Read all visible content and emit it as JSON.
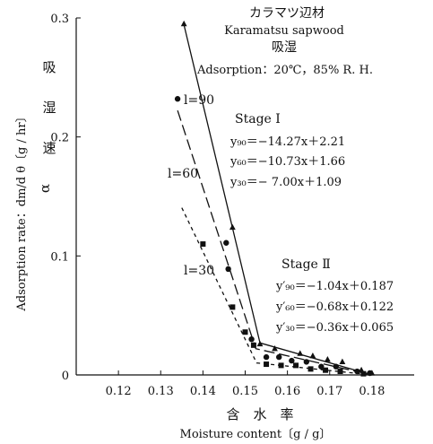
{
  "chart_data": {
    "type": "line",
    "title_jp": "カラマツ辺材",
    "title": "Karamatsu sapwood",
    "subtitle_jp": "吸湿",
    "subtitle": "Adsorption：20℃，85% R. H.",
    "xlabel_jp": "含　水　率",
    "xlabel": "Moisture content〔g / g〕",
    "ylabel": "Adsorption rate：dm/d θ〔g / hr〕",
    "ylabel_jp": [
      "吸",
      "湿",
      "速"
    ],
    "ylabel_symbol": "α",
    "xlim": [
      0.11,
      0.19
    ],
    "ylim": [
      0,
      0.3
    ],
    "xticks": [
      0.12,
      0.13,
      0.14,
      0.15,
      0.16,
      0.17,
      0.18
    ],
    "xtick_labels": [
      "0.12",
      "0.13",
      "0.14",
      "0.15",
      "0.16",
      "0.17",
      "0.18"
    ],
    "yticks": [
      0,
      0.1,
      0.2,
      0.3
    ],
    "ytick_labels": [
      "0",
      "0.1",
      "0.2",
      "0.3"
    ],
    "grid": false,
    "series": [
      {
        "label": "l=90",
        "marker": "triangle",
        "dash": "solid",
        "points": [
          [
            0.1355,
            0.295
          ],
          [
            0.147,
            0.124
          ],
          [
            0.1535,
            0.026
          ],
          [
            0.157,
            0.022
          ],
          [
            0.163,
            0.018
          ],
          [
            0.166,
            0.016
          ],
          [
            0.1695,
            0.013
          ],
          [
            0.173,
            0.011
          ],
          [
            0.1775,
            0.004
          ],
          [
            0.18,
            0.0015
          ]
        ],
        "line": [
          [
            0.1355,
            0.2943
          ],
          [
            0.1535,
            0.0269
          ],
          [
            0.18,
            0.0
          ]
        ]
      },
      {
        "label": "l=60",
        "marker": "circle",
        "dash": "longdash",
        "points": [
          [
            0.134,
            0.232
          ],
          [
            0.1455,
            0.111
          ],
          [
            0.146,
            0.089
          ],
          [
            0.1515,
            0.03
          ],
          [
            0.155,
            0.015
          ],
          [
            0.158,
            0.015
          ],
          [
            0.161,
            0.012
          ],
          [
            0.1645,
            0.011
          ],
          [
            0.168,
            0.007
          ],
          [
            0.1715,
            0.007
          ],
          [
            0.1765,
            0.003
          ],
          [
            0.1795,
            0.0015
          ]
        ],
        "line": [
          [
            0.134,
            0.2222
          ],
          [
            0.1525,
            0.0221
          ],
          [
            0.18,
            0.0
          ]
        ]
      },
      {
        "label": "l=30",
        "marker": "square",
        "dash": "shortdash",
        "points": [
          [
            0.14,
            0.11
          ],
          [
            0.147,
            0.057
          ],
          [
            0.15,
            0.036
          ],
          [
            0.152,
            0.025
          ],
          [
            0.155,
            0.009
          ],
          [
            0.1585,
            0.008
          ],
          [
            0.162,
            0.008
          ],
          [
            0.1655,
            0.005
          ],
          [
            0.169,
            0.004
          ],
          [
            0.1725,
            0.003
          ],
          [
            0.178,
            0.001
          ]
        ],
        "line": [
          [
            0.135,
            0.1405
          ],
          [
            0.1527,
            0.0101
          ],
          [
            0.18,
            0.0
          ]
        ]
      }
    ],
    "annotations": {
      "stage1_title": "Stage Ⅰ",
      "stage1_eq90": "y₉₀＝−14.27x＋2.21",
      "stage1_eq60": "y₆₀＝−10.73x＋1.66",
      "stage1_eq30": "y₃₀＝−  7.00x＋1.09",
      "stage2_title": "Stage Ⅱ",
      "stage2_eq90": "y′₉₀＝−1.04x＋0.187",
      "stage2_eq60": "y′₆₀＝−0.68x＋0.122",
      "stage2_eq30": "y′₃₀＝−0.36x＋0.065"
    }
  }
}
